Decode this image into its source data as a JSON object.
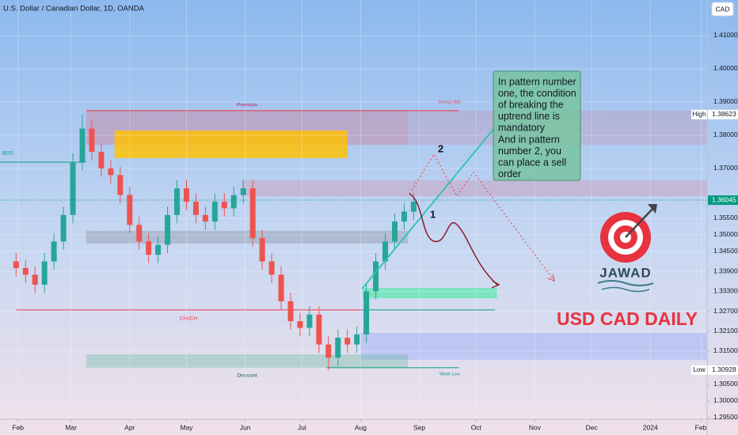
{
  "chart_data": {
    "type": "candlestick",
    "title": "U.S. Dollar / Canadian Dollar, 1D, OANDA",
    "currency": "CAD",
    "up_color": "#26a69a",
    "down_color": "#ef5350",
    "grid": true,
    "x": [
      31,
      36,
      41,
      46,
      51,
      56,
      61,
      66,
      71,
      76,
      81,
      86,
      91,
      96,
      101,
      106,
      111,
      116,
      121,
      126,
      131,
      136,
      141,
      146,
      151,
      156,
      161,
      166,
      171,
      176,
      181,
      186,
      191,
      196,
      201,
      206,
      211,
      216,
      221,
      226,
      231,
      236,
      241
    ],
    "open": [
      1.342,
      1.34,
      1.338,
      1.335,
      1.342,
      1.348,
      1.356,
      1.372,
      1.382,
      1.375,
      1.37,
      1.368,
      1.362,
      1.353,
      1.348,
      1.344,
      1.347,
      1.356,
      1.364,
      1.36,
      1.356,
      1.354,
      1.36,
      1.358,
      1.362,
      1.364,
      1.349,
      1.342,
      1.338,
      1.33,
      1.324,
      1.322,
      1.326,
      1.317,
      1.313,
      1.319,
      1.317,
      1.32,
      1.333,
      1.342,
      1.348,
      1.354,
      1.357
    ],
    "high": [
      1.3445,
      1.3425,
      1.3405,
      1.3445,
      1.3505,
      1.3585,
      1.3745,
      1.3862,
      1.3845,
      1.3775,
      1.3725,
      1.3705,
      1.3645,
      1.3555,
      1.3505,
      1.3495,
      1.3585,
      1.3665,
      1.3665,
      1.3625,
      1.3585,
      1.3625,
      1.3625,
      1.3645,
      1.3665,
      1.3665,
      1.3515,
      1.3445,
      1.3405,
      1.3325,
      1.3265,
      1.3285,
      1.3285,
      1.3195,
      1.3215,
      1.3215,
      1.3225,
      1.3355,
      1.3445,
      1.3505,
      1.3565,
      1.3595,
      1.3625
    ],
    "low": [
      1.3375,
      1.3355,
      1.3325,
      1.3325,
      1.3395,
      1.3455,
      1.3535,
      1.3695,
      1.3725,
      1.3675,
      1.3655,
      1.3595,
      1.3505,
      1.3455,
      1.3415,
      1.3415,
      1.3445,
      1.3535,
      1.3575,
      1.3535,
      1.3515,
      1.3515,
      1.3555,
      1.3555,
      1.3595,
      1.3465,
      1.3395,
      1.3355,
      1.3275,
      1.3215,
      1.3195,
      1.3195,
      1.3145,
      1.3093,
      1.3105,
      1.3145,
      1.3145,
      1.3175,
      1.3305,
      1.3395,
      1.3455,
      1.3515,
      1.3545
    ],
    "close": [
      1.34,
      1.338,
      1.335,
      1.342,
      1.348,
      1.356,
      1.372,
      1.382,
      1.375,
      1.37,
      1.368,
      1.362,
      1.353,
      1.348,
      1.344,
      1.347,
      1.356,
      1.364,
      1.36,
      1.356,
      1.354,
      1.36,
      1.358,
      1.362,
      1.364,
      1.349,
      1.342,
      1.338,
      1.33,
      1.324,
      1.322,
      1.326,
      1.317,
      1.313,
      1.319,
      1.317,
      1.32,
      1.333,
      1.342,
      1.348,
      1.354,
      1.357,
      1.36
    ],
    "xlim": [
      22.5,
      396
    ],
    "ylim": [
      1.2945,
      1.42071
    ],
    "xticks": [
      {
        "value": 32,
        "label": "Feb"
      },
      {
        "value": 60,
        "label": "Mar"
      },
      {
        "value": 91,
        "label": "Apr"
      },
      {
        "value": 121,
        "label": "May"
      },
      {
        "value": 152,
        "label": "Jun"
      },
      {
        "value": 182,
        "label": "Jul"
      },
      {
        "value": 213,
        "label": "Aug"
      },
      {
        "value": 244,
        "label": "Sep"
      },
      {
        "value": 274,
        "label": "Oct"
      },
      {
        "value": 305,
        "label": "Nov"
      },
      {
        "value": 335,
        "label": "Dec"
      },
      {
        "value": 366,
        "label": "2024"
      },
      {
        "value": 393,
        "label": "Feb"
      }
    ],
    "yticks": [
      {
        "value": 1.41,
        "label": "1.41000"
      },
      {
        "value": 1.4,
        "label": "1.40000"
      },
      {
        "value": 1.39,
        "label": "1.39000"
      },
      {
        "value": 1.38,
        "label": "1.38000"
      },
      {
        "value": 1.37,
        "label": "1.37000"
      },
      {
        "value": 1.355,
        "label": "1.35500"
      },
      {
        "value": 1.35,
        "label": "1.35000"
      },
      {
        "value": 1.345,
        "label": "1.34500"
      },
      {
        "value": 1.339,
        "label": "1.33900"
      },
      {
        "value": 1.333,
        "label": "1.33300"
      },
      {
        "value": 1.327,
        "label": "1.32700"
      },
      {
        "value": 1.321,
        "label": "1.32100"
      },
      {
        "value": 1.315,
        "label": "1.31500"
      },
      {
        "value": 1.305,
        "label": "1.30500"
      },
      {
        "value": 1.3,
        "label": "1.30000"
      },
      {
        "value": 1.295,
        "label": "1.29500"
      }
    ],
    "price_labels": [
      {
        "label": "High",
        "value": 1.38623,
        "color": "#ffffff",
        "text_color": "#131722"
      },
      {
        "value": 1.36045,
        "color": "#089981",
        "text_color": "#ffffff"
      },
      {
        "label": "Low",
        "value": 1.30928,
        "color": "#ffffff",
        "text_color": "#131722"
      }
    ],
    "zones": [
      {
        "x": [
          68,
          238
        ],
        "y": [
          1.3771,
          1.3874
        ],
        "color": "rgba(242,54,69,0.22)",
        "label": "Premium"
      },
      {
        "x": [
          238,
          396
        ],
        "y": [
          1.3771,
          1.3874
        ],
        "color": "rgba(242,54,69,0.13)"
      },
      {
        "x": [
          83,
          206
        ],
        "y": [
          1.3731,
          1.3814
        ],
        "color": "rgba(255,193,7,0.85)"
      },
      {
        "x": [
          150,
          396
        ],
        "y": [
          1.3616,
          1.3664
        ],
        "color": "rgba(242,54,69,0.15)"
      },
      {
        "x": [
          68,
          238
        ],
        "y": [
          1.3474,
          1.3512
        ],
        "color": "rgba(120,123,134,0.3)"
      },
      {
        "x": [
          214,
          285
        ],
        "y": [
          1.3309,
          1.334
        ],
        "color": "rgba(102,230,180,0.8)"
      },
      {
        "x": [
          213,
          396
        ],
        "y": [
          1.3124,
          1.3205
        ],
        "color": "rgba(120,150,255,0.3)"
      },
      {
        "x": [
          68,
          238
        ],
        "y": [
          1.31,
          1.314
        ],
        "color": "rgba(80,180,150,0.3)",
        "label": "Discount"
      }
    ],
    "lines": [
      {
        "x": [
          22.5,
          68
        ],
        "y": 1.3719,
        "color": "#089981",
        "label": "BOS"
      },
      {
        "x": [
          31,
          213
        ],
        "y": 1.3274,
        "color": "#f23645",
        "label": "CHoCH"
      },
      {
        "x": [
          68,
          265
        ],
        "y": 1.3874,
        "color": "#f23645",
        "label": "Strong High"
      },
      {
        "x": [
          195,
          265
        ],
        "y": 1.31,
        "color": "#089981",
        "label": "Weak Low"
      },
      {
        "x": [
          213,
          284
        ],
        "y": 1.3274,
        "color": "#089981"
      }
    ],
    "trend_line": {
      "x": [
        213.8,
        287.7
      ],
      "y": [
        1.3338,
        1.385
      ],
      "color": "#26c6b0"
    },
    "note": [
      "In pattern number",
      "one, the condition",
      "of breaking the",
      "uptrend line is",
      "mandatory",
      "And in pattern",
      "number 2, you",
      "can place a sell",
      "order"
    ],
    "pattern_labels": [
      "1",
      "2"
    ],
    "brand": "JAWAD",
    "caption": "USD CAD DAILY"
  }
}
